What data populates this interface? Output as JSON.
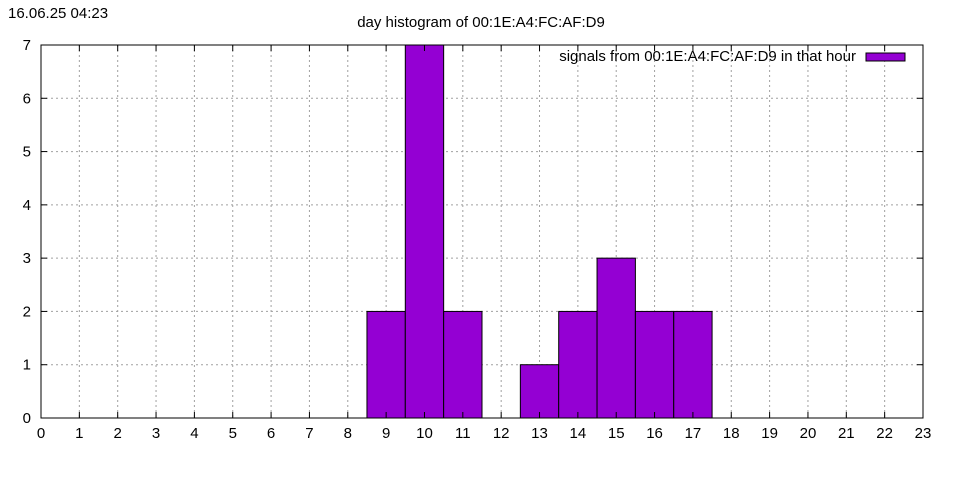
{
  "timestamp": "16.06.25 04:23",
  "colors": {
    "bar_fill": "#9400d3",
    "bar_stroke": "#000000",
    "grid": "#a0a0a0",
    "axis": "#000000"
  },
  "chart_data": {
    "type": "bar",
    "title": "day histogram of 00:1E:A4:FC:AF:D9",
    "xlabel": "",
    "ylabel": "",
    "xlim": [
      0,
      23
    ],
    "ylim": [
      0,
      7
    ],
    "x_ticks": [
      0,
      1,
      2,
      3,
      4,
      5,
      6,
      7,
      8,
      9,
      10,
      11,
      12,
      13,
      14,
      15,
      16,
      17,
      18,
      19,
      20,
      21,
      22,
      23
    ],
    "y_ticks": [
      0,
      1,
      2,
      3,
      4,
      5,
      6,
      7
    ],
    "grid": true,
    "legend_position": "top-right",
    "series": [
      {
        "name": "signals from 00:1E:A4:FC:AF:D9 in that hour",
        "x": [
          9,
          10,
          11,
          13,
          14,
          15,
          16,
          17
        ],
        "values": [
          2,
          7,
          2,
          1,
          2,
          3,
          2,
          2
        ]
      }
    ]
  }
}
